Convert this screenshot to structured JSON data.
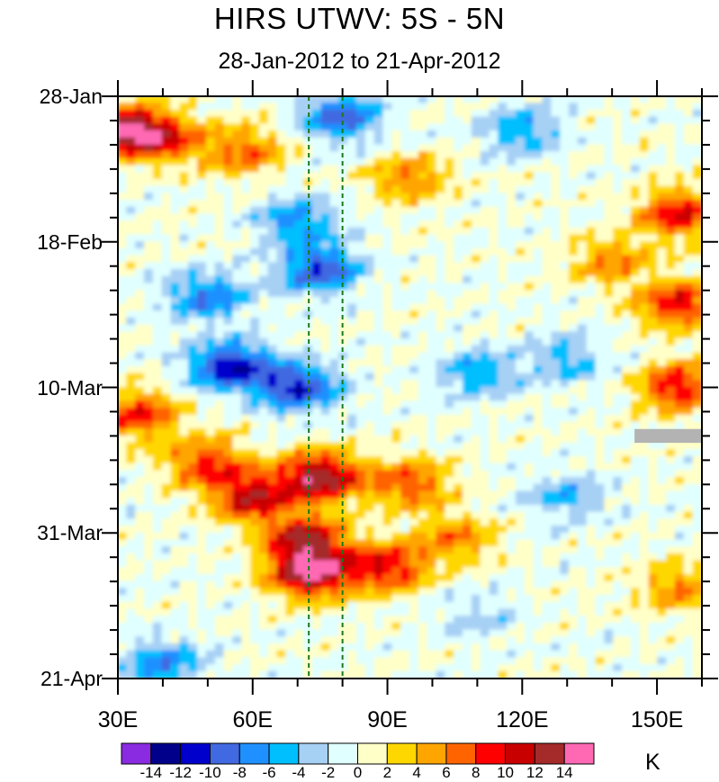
{
  "chart_data": {
    "type": "heatmap",
    "title": "HIRS UTWV: 5S - 5N",
    "subtitle": "28-Jan-2012 to 21-Apr-2012",
    "xlabel": "",
    "ylabel": "",
    "x_range": [
      30,
      160
    ],
    "x_ticks": [
      {
        "value": 30,
        "label": "30E"
      },
      {
        "value": 60,
        "label": "60E"
      },
      {
        "value": 90,
        "label": "90E"
      },
      {
        "value": 120,
        "label": "120E"
      },
      {
        "value": 150,
        "label": "150E"
      }
    ],
    "y_range_days_from_start": [
      0,
      84
    ],
    "y_ticks": [
      {
        "value": 0,
        "label": "28-Jan"
      },
      {
        "value": 21,
        "label": "18-Feb"
      },
      {
        "value": 42,
        "label": "10-Mar"
      },
      {
        "value": 63,
        "label": "31-Mar"
      },
      {
        "value": 84,
        "label": "21-Apr"
      }
    ],
    "reference_lines_lon": [
      72.5,
      80
    ],
    "missing_data_region": {
      "lon": [
        145,
        160
      ],
      "day": [
        48,
        50
      ]
    },
    "colorbar": {
      "unit": "K",
      "levels": [
        -14,
        -12,
        -10,
        -8,
        -6,
        -4,
        -2,
        0,
        2,
        4,
        6,
        8,
        10,
        12,
        14
      ],
      "level_labels": [
        "-14",
        "-12",
        "-10",
        "-8",
        "-6",
        "-4",
        "-2",
        "0",
        "2",
        "4",
        "6",
        "8",
        "10",
        "12",
        "14"
      ],
      "colors": [
        "#8a2be2",
        "#00008b",
        "#0000cd",
        "#4169e1",
        "#1e90ff",
        "#00bfff",
        "#a7d0f5",
        "#e0ffff",
        "#ffffc8",
        "#ffd700",
        "#ffa500",
        "#ff6400",
        "#ff0000",
        "#c80000",
        "#a52a2a",
        "#ff69b4"
      ]
    },
    "anomaly_features": [
      {
        "description": "warm",
        "lon": 32,
        "day": 5,
        "value": 12
      },
      {
        "description": "warm",
        "lon": 40,
        "day": 6,
        "value": 8
      },
      {
        "description": "warm",
        "lon": 58,
        "day": 8,
        "value": 7
      },
      {
        "description": "warm",
        "lon": 95,
        "day": 12,
        "value": 6
      },
      {
        "description": "cool",
        "lon": 120,
        "day": 5,
        "value": -6
      },
      {
        "description": "cool",
        "lon": 80,
        "day": 3,
        "value": -9
      },
      {
        "description": "cool",
        "lon": 70,
        "day": 18,
        "value": -7
      },
      {
        "description": "cool",
        "lon": 75,
        "day": 25,
        "value": -10
      },
      {
        "description": "cool",
        "lon": 50,
        "day": 29,
        "value": -8
      },
      {
        "description": "cool",
        "lon": 55,
        "day": 39,
        "value": -12
      },
      {
        "description": "cool",
        "lon": 70,
        "day": 42,
        "value": -11
      },
      {
        "description": "cool",
        "lon": 110,
        "day": 40,
        "value": -6
      },
      {
        "description": "cool",
        "lon": 130,
        "day": 38,
        "value": -5
      },
      {
        "description": "warm",
        "lon": 155,
        "day": 17,
        "value": 10
      },
      {
        "description": "warm",
        "lon": 140,
        "day": 24,
        "value": 6
      },
      {
        "description": "warm",
        "lon": 155,
        "day": 30,
        "value": 10
      },
      {
        "description": "warm",
        "lon": 155,
        "day": 42,
        "value": 10
      },
      {
        "description": "warm",
        "lon": 35,
        "day": 46,
        "value": 9
      },
      {
        "description": "warm",
        "lon": 50,
        "day": 53,
        "value": 9
      },
      {
        "description": "warm",
        "lon": 75,
        "day": 55,
        "value": 14
      },
      {
        "description": "warm",
        "lon": 60,
        "day": 58,
        "value": 11
      },
      {
        "description": "warm",
        "lon": 95,
        "day": 56,
        "value": 8
      },
      {
        "description": "warm",
        "lon": 72,
        "day": 64,
        "value": 12
      },
      {
        "description": "warm",
        "lon": 73,
        "day": 69,
        "value": 14
      },
      {
        "description": "warm",
        "lon": 90,
        "day": 68,
        "value": 10
      },
      {
        "description": "warm",
        "lon": 105,
        "day": 64,
        "value": 6
      },
      {
        "description": "warm",
        "lon": 155,
        "day": 71,
        "value": 6
      },
      {
        "description": "cool",
        "lon": 40,
        "day": 82,
        "value": -7
      },
      {
        "description": "cool",
        "lon": 130,
        "day": 58,
        "value": -5
      },
      {
        "description": "cool",
        "lon": 110,
        "day": 75,
        "value": -3
      }
    ]
  }
}
